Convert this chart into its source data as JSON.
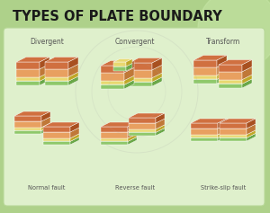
{
  "title": "TYPES OF PLATE BOUNDARY",
  "title_fontsize": 10.5,
  "title_color": "#1a1a1a",
  "bg_outer": "#aed18a",
  "bg_panel": "#dff0cc",
  "panel_border": "#b8d898",
  "col_labels": [
    "Divergent",
    "Convergent",
    "Transform"
  ],
  "row_labels": [
    "Normal fault",
    "Reverse fault",
    "Strike-slip fault"
  ],
  "col_label_fontsize": 5.5,
  "row_label_fontsize": 4.8,
  "colors": {
    "green_top": "#8ec86a",
    "yellow_layer": "#e8d870",
    "orange_layer": "#e8a060",
    "brown_base": "#d07040",
    "green_side": "#6aa848",
    "yellow_side": "#c0a828",
    "orange_side": "#c07838",
    "brown_side": "#a85020"
  }
}
